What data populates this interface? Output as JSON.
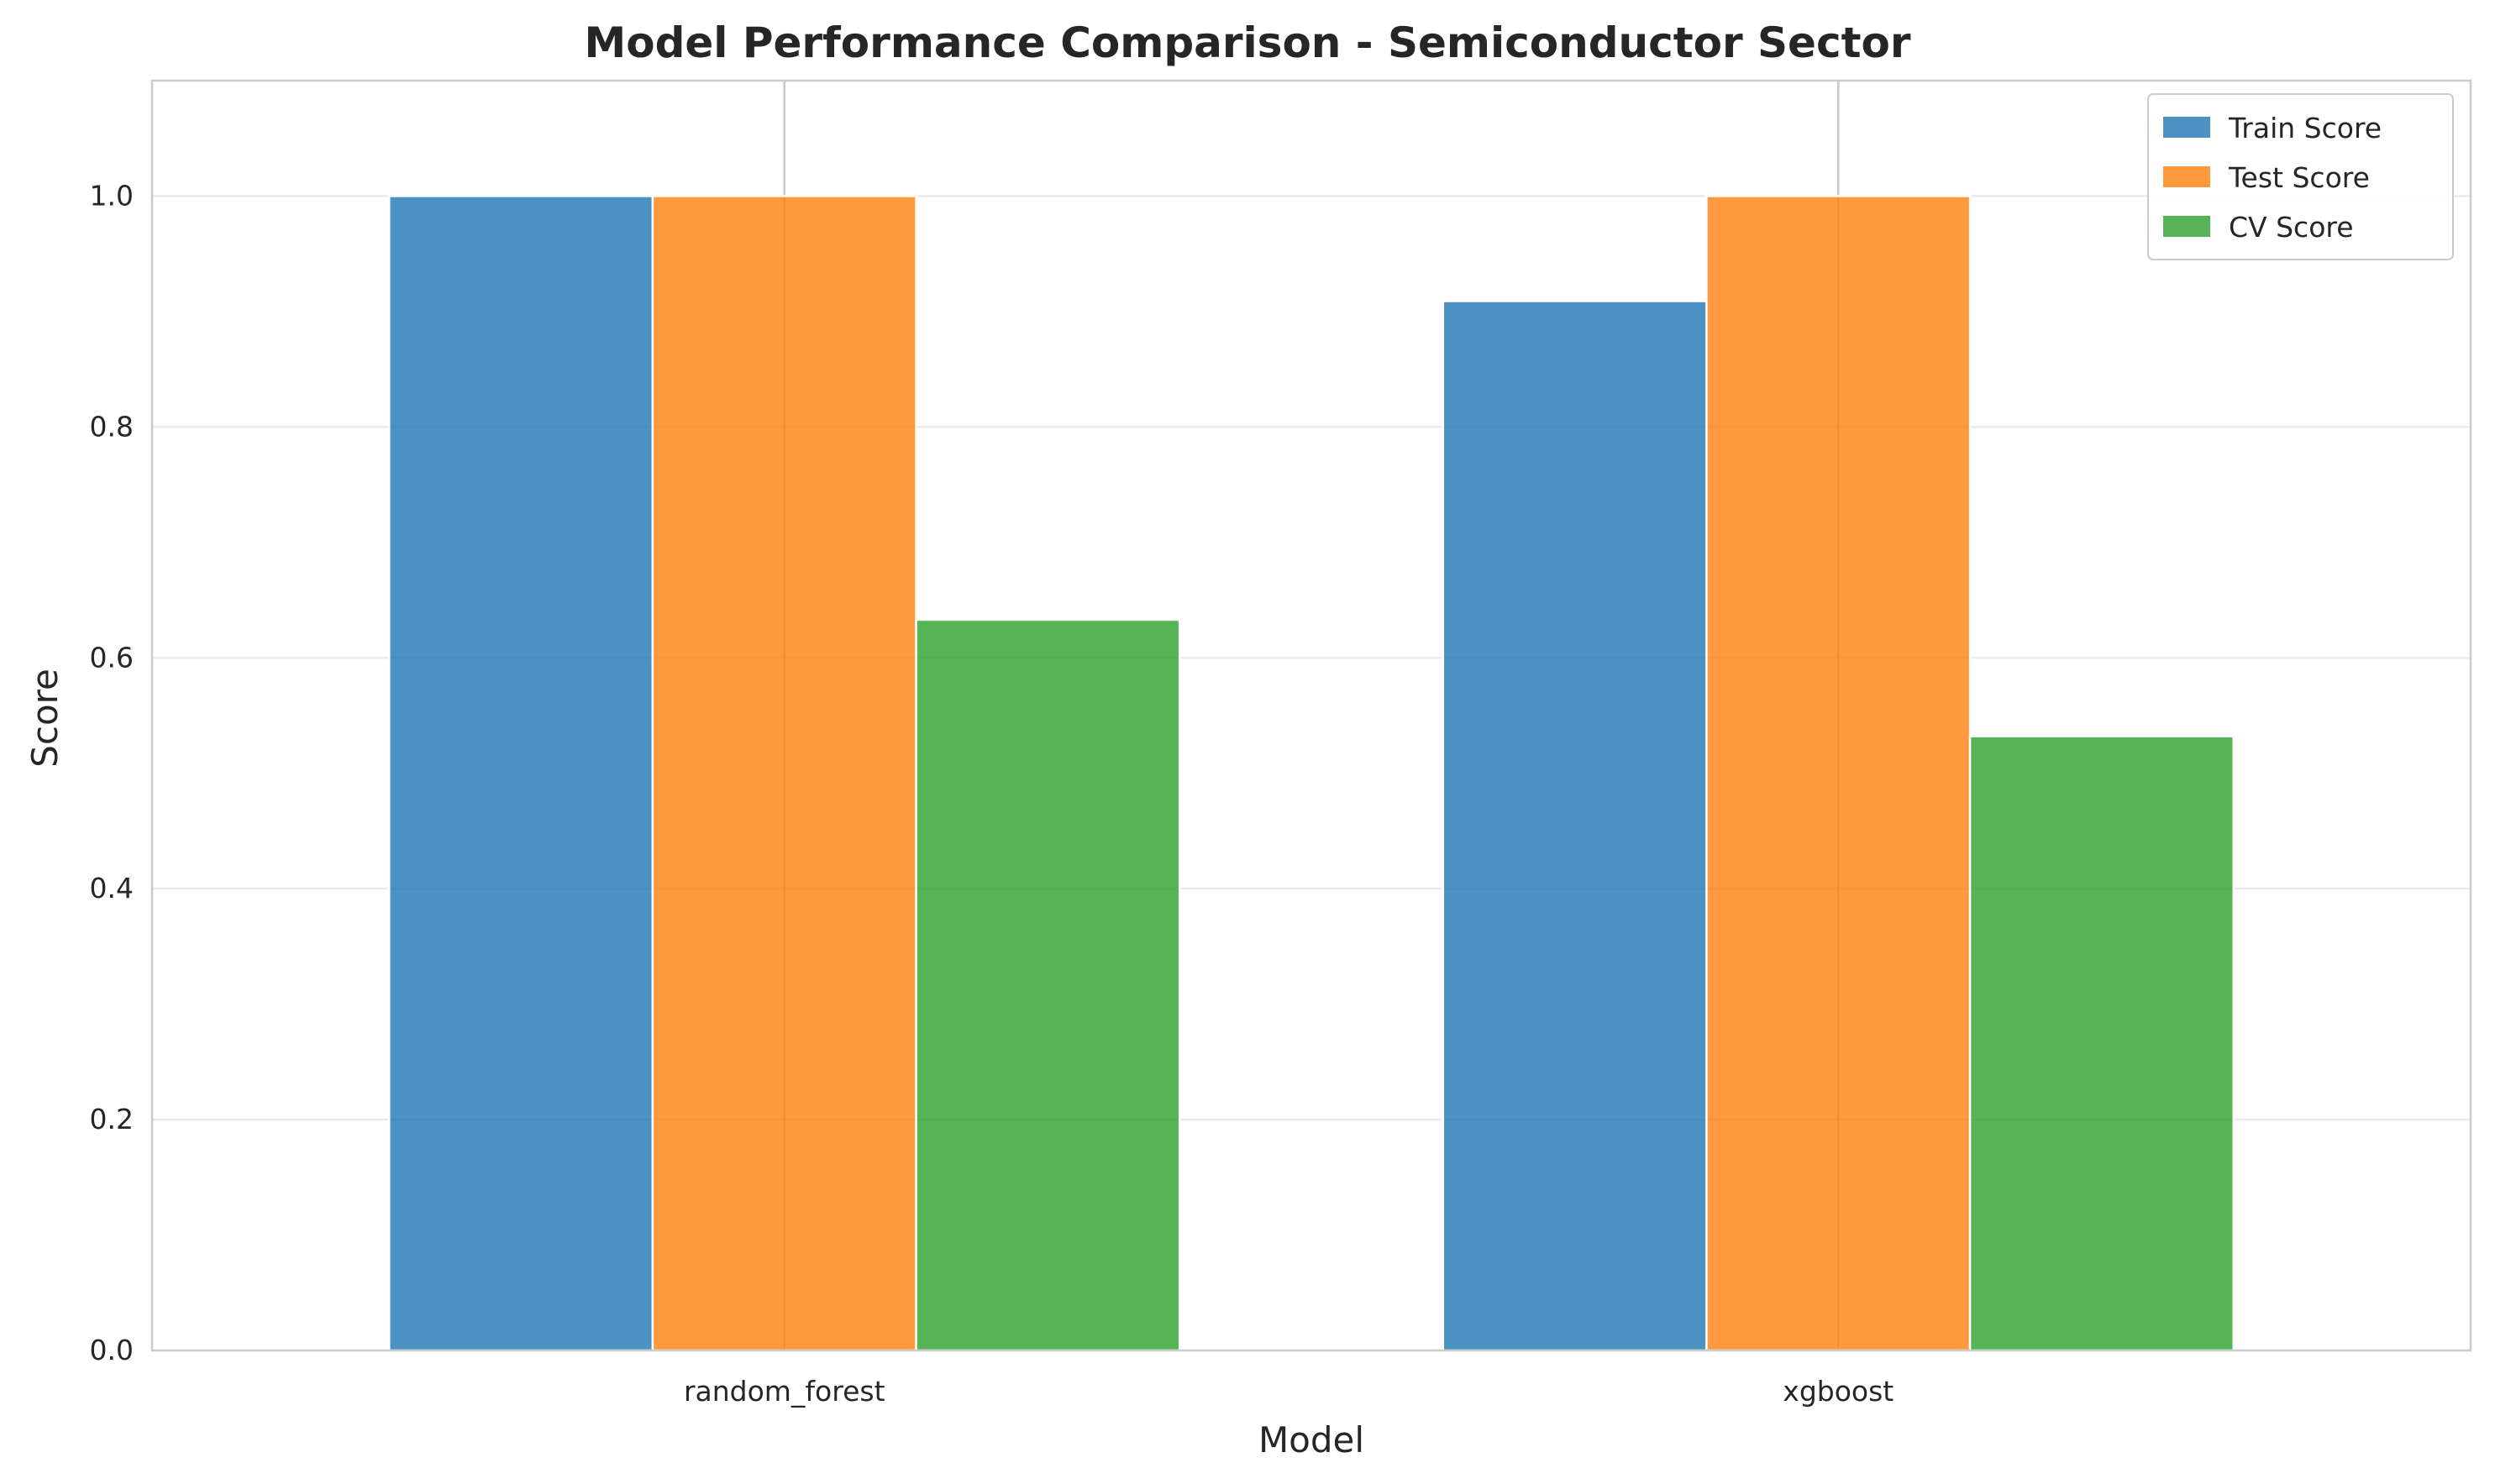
{
  "chart_data": {
    "type": "bar",
    "title": "Model Performance Comparison - Semiconductor Sector",
    "xlabel": "Model",
    "ylabel": "Score",
    "categories": [
      "random_forest",
      "xgboost"
    ],
    "series": [
      {
        "name": "Train Score",
        "values": [
          1.0,
          0.909
        ],
        "color": "#1f77b4"
      },
      {
        "name": "Test Score",
        "values": [
          1.0,
          1.0
        ],
        "color": "#ff7f0e"
      },
      {
        "name": "CV Score",
        "values": [
          0.633,
          0.532
        ],
        "color": "#2ca02c"
      }
    ],
    "ylim": [
      0,
      1.1
    ],
    "yticks": [
      "0.0",
      "0.2",
      "0.4",
      "0.6",
      "0.8",
      "1.0"
    ],
    "grid": true,
    "legend_position": "top-right"
  }
}
